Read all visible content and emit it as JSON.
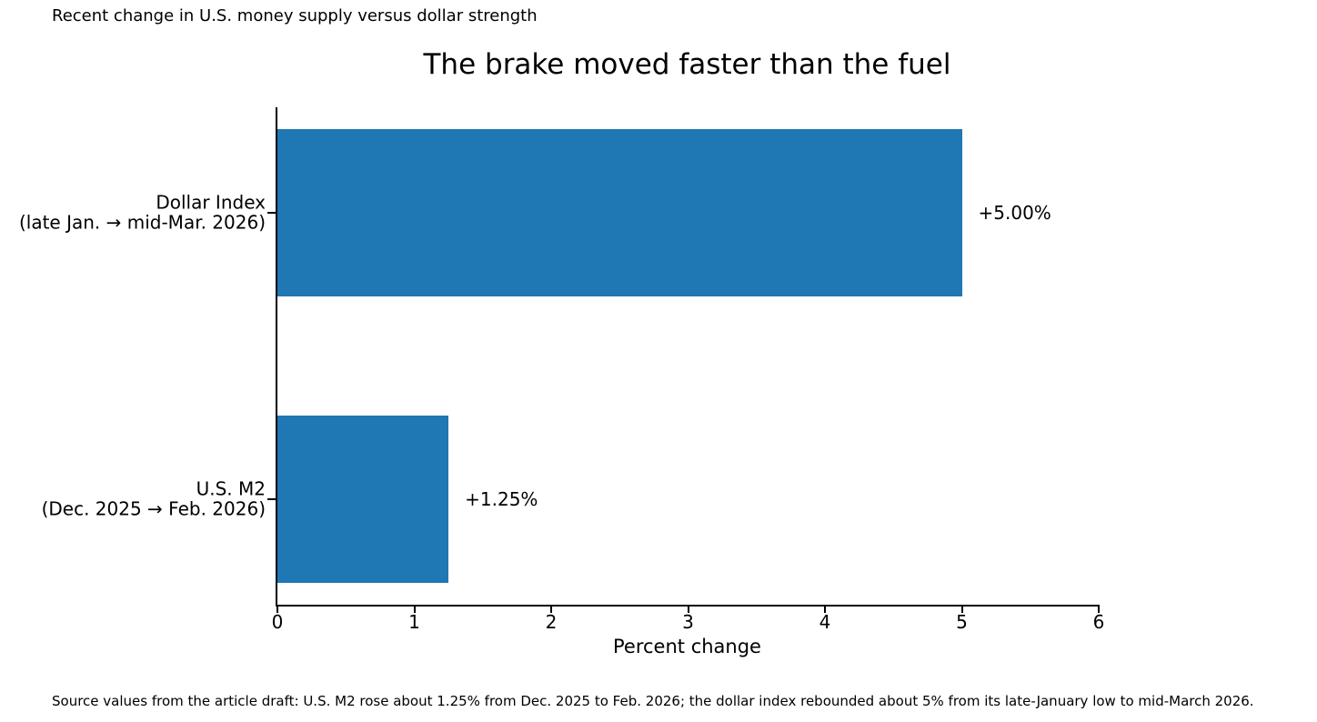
{
  "figure": {
    "annotation": "Recent change in U.S. money supply versus dollar strength",
    "source_note": "Source values from the article draft: U.S. M2 rose about 1.25% from Dec. 2025 to Feb. 2026; the dollar index rebounded about 5% from its late-January low to mid-March 2026."
  },
  "chart_data": {
    "type": "bar",
    "orientation": "horizontal",
    "title": "The brake moved faster than the fuel",
    "categories": [
      {
        "id": "dollar-index",
        "lines": [
          "Dollar Index",
          "(late Jan. → mid-Mar. 2026)"
        ]
      },
      {
        "id": "us-m2",
        "lines": [
          "U.S. M2",
          "(Dec. 2025 → Feb. 2026)"
        ]
      }
    ],
    "values": [
      5.0,
      1.25
    ],
    "value_labels": [
      "+5.00%",
      "+1.25%"
    ],
    "xlabel": "Percent change",
    "xlim": [
      0,
      6
    ],
    "xticks": [
      0,
      1,
      2,
      3,
      4,
      5,
      6
    ],
    "bar_color": "#1f77b4",
    "axis_color": "#000000",
    "grid": false,
    "legend": "none"
  }
}
